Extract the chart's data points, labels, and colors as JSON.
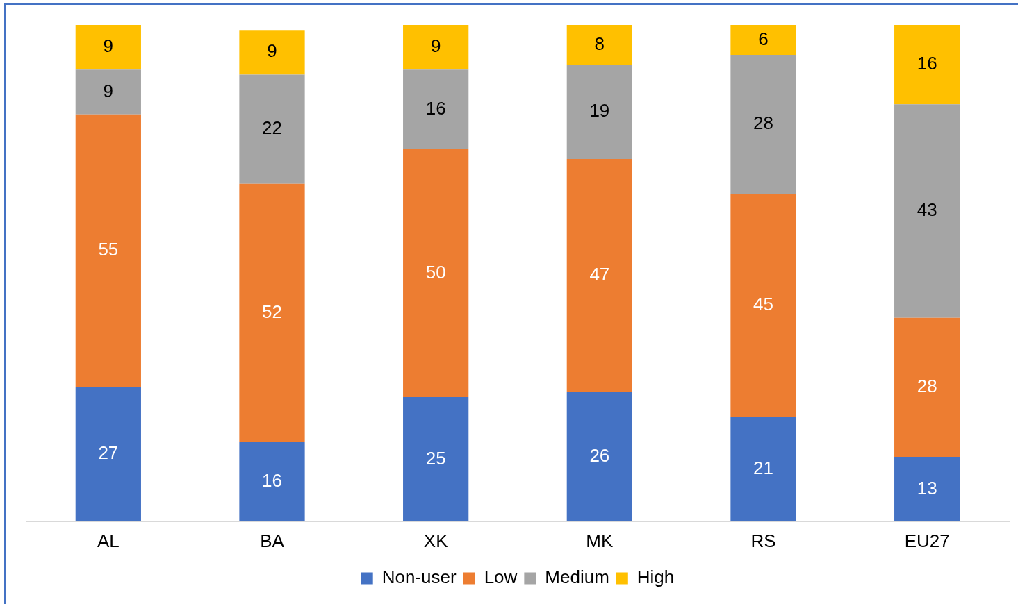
{
  "chart_data": {
    "type": "bar",
    "stacked": true,
    "data_labels": true,
    "legend": "bottom",
    "grid": false,
    "categories": [
      "AL",
      "BA",
      "XK",
      "MK",
      "RS",
      "EU27"
    ],
    "series": [
      {
        "name": "Non-user",
        "color": "#4472c4",
        "values": [
          27,
          16,
          25,
          26,
          21,
          13
        ]
      },
      {
        "name": "Low",
        "color": "#ed7d31",
        "values": [
          55,
          52,
          50,
          47,
          45,
          28
        ]
      },
      {
        "name": "Medium",
        "color": "#a5a5a5",
        "values": [
          9,
          22,
          16,
          19,
          28,
          43
        ]
      },
      {
        "name": "High",
        "color": "#ffc000",
        "values": [
          9,
          9,
          9,
          8,
          6,
          16
        ]
      }
    ]
  }
}
